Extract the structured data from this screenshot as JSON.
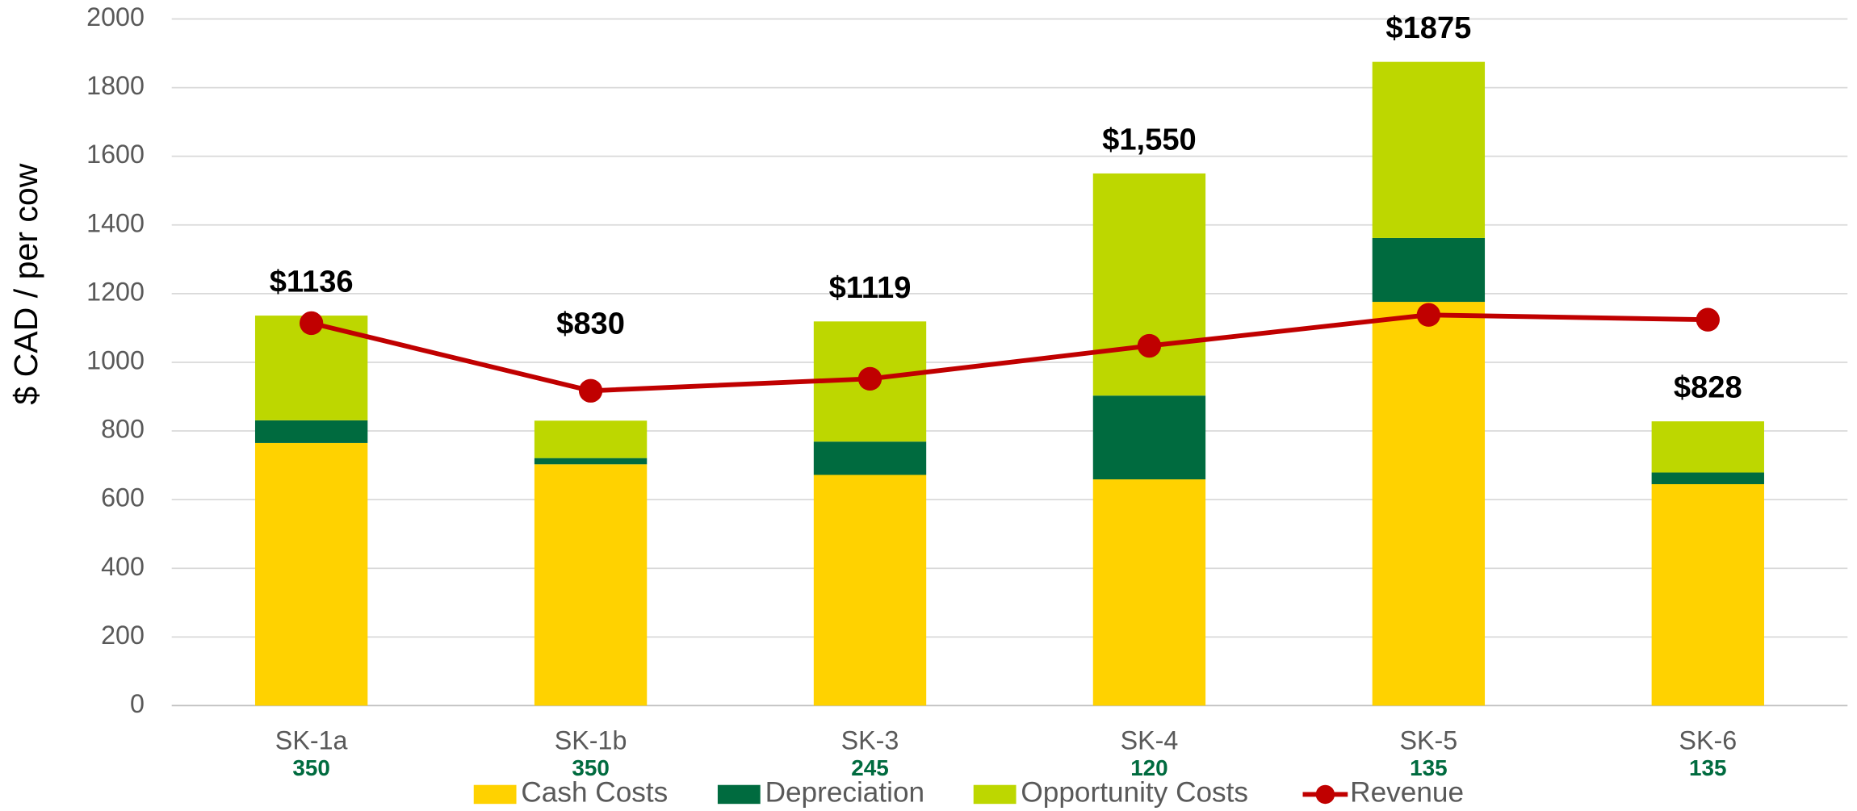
{
  "chart_data": {
    "type": "stacked_bar_line",
    "y_label": "$ CAD / per cow",
    "categories": [
      "SK-1a",
      "SK-1b",
      "SK-3",
      "SK-4",
      "SK-5",
      "SK-6"
    ],
    "herd_sizes": [
      350,
      350,
      245,
      120,
      135,
      135
    ],
    "total_labels": [
      "$1136",
      "$830",
      "$1119",
      "$1,550",
      "$1875",
      "$828"
    ],
    "series": [
      {
        "name": "Cash Costs",
        "color": "#FFD200",
        "kind": "bar",
        "values": [
          765,
          703,
          672,
          659,
          1176,
          645
        ]
      },
      {
        "name": "Depreciation",
        "color": "#006B3F",
        "kind": "bar",
        "values": [
          66,
          18,
          97,
          244,
          186,
          34
        ]
      },
      {
        "name": "Opportunity Costs",
        "color": "#BDD700",
        "kind": "bar",
        "values": [
          305,
          109,
          350,
          647,
          513,
          149
        ]
      },
      {
        "name": "Revenue",
        "color": "#C00000",
        "kind": "line",
        "values": [
          1114,
          917,
          952,
          1048,
          1138,
          1124
        ]
      }
    ],
    "ylim": [
      0,
      2000
    ],
    "yticks": [
      0,
      200,
      400,
      600,
      800,
      1000,
      1200,
      1400,
      1600,
      1800,
      2000
    ],
    "grid": true,
    "legend": "bottom"
  }
}
